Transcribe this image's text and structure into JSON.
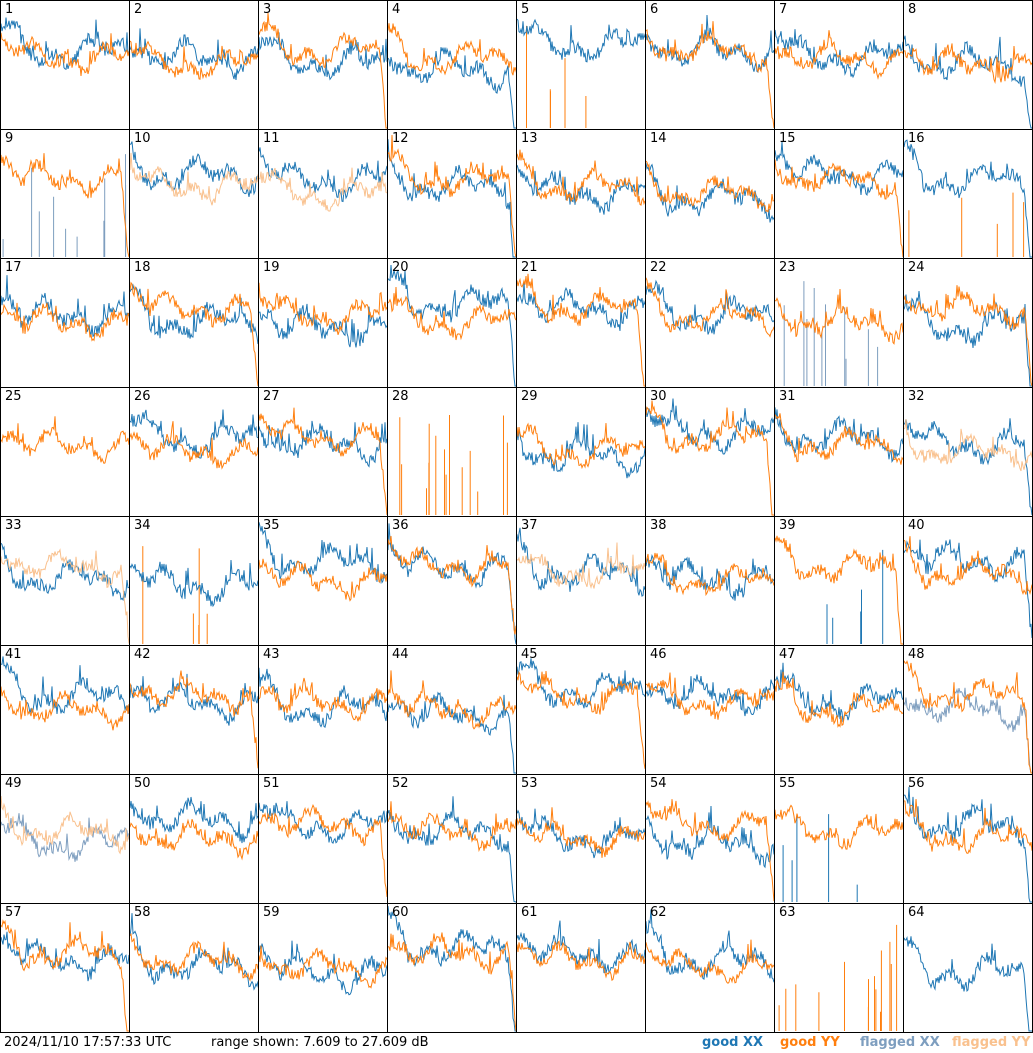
{
  "chart_data": {
    "type": "line",
    "panel_count": 64,
    "panels": [
      "1",
      "2",
      "3",
      "4",
      "5",
      "6",
      "7",
      "8",
      "9",
      "10",
      "11",
      "12",
      "13",
      "14",
      "15",
      "16",
      "17",
      "18",
      "19",
      "20",
      "21",
      "22",
      "23",
      "24",
      "25",
      "26",
      "27",
      "28",
      "29",
      "30",
      "31",
      "32",
      "33",
      "34",
      "35",
      "36",
      "37",
      "38",
      "39",
      "40",
      "41",
      "42",
      "43",
      "44",
      "45",
      "46",
      "47",
      "48",
      "49",
      "50",
      "51",
      "52",
      "53",
      "54",
      "55",
      "56",
      "57",
      "58",
      "59",
      "60",
      "61",
      "62",
      "63",
      "64"
    ],
    "ylim": [
      7.609,
      27.609
    ],
    "series": [
      {
        "name": "good XX",
        "color": "#1f77b4"
      },
      {
        "name": "good YY",
        "color": "#ff7f0e"
      },
      {
        "name": "flagged XX",
        "color": "#7e9ebf"
      },
      {
        "name": "flagged YY",
        "color": "#f9c18e"
      }
    ],
    "flagged_xx_panels": [
      9,
      23,
      48,
      49
    ],
    "flagged_yy_panels": [
      10,
      11,
      32,
      33,
      37,
      49
    ]
  },
  "footer": {
    "timestamp": "2024/11/10 17:57:33 UTC",
    "range_text": "range shown: 7.609 to 27.609 dB",
    "legend": {
      "good_xx": "good XX",
      "good_yy": "good YY",
      "flagged_xx": "flagged XX",
      "flagged_yy": "flagged YY"
    }
  },
  "colors": {
    "good_xx": "#1f77b4",
    "good_yy": "#ff7f0e",
    "flagged_xx": "#7e9ebf",
    "flagged_yy": "#f9c18e"
  }
}
